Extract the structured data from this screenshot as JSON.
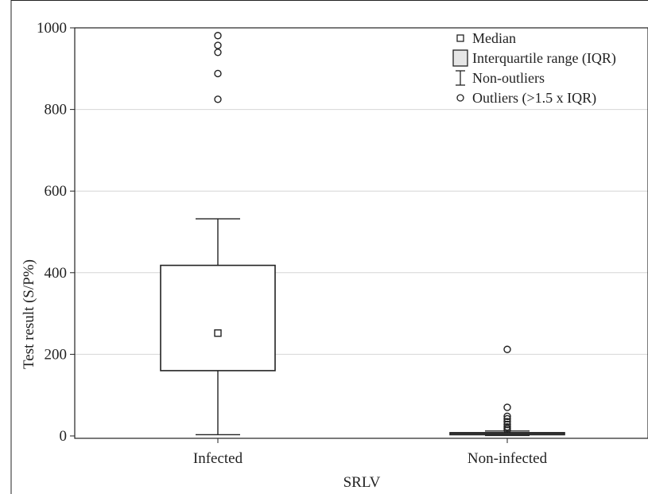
{
  "chart_data": {
    "type": "box",
    "title": "",
    "xlabel": "SRLV",
    "ylabel": "Test result (S/P%)",
    "ylim": [
      0,
      1000
    ],
    "yticks": [
      0,
      200,
      400,
      600,
      800,
      1000
    ],
    "grid": "horizontal",
    "legend_position": "top-right",
    "categories": [
      "Infected",
      "Non-infected"
    ],
    "boxes": [
      {
        "category": "Infected",
        "whisker_low": 3,
        "q1": 160,
        "median": 252,
        "q3": 418,
        "whisker_high": 532,
        "outliers": [
          825,
          888,
          940,
          957,
          981
        ]
      },
      {
        "category": "Non-infected",
        "whisker_low": 1,
        "q1": 3,
        "median": 6,
        "q3": 8,
        "whisker_high": 12,
        "outliers": [
          14,
          18,
          22,
          28,
          35,
          42,
          48,
          70,
          212
        ]
      }
    ],
    "legend": [
      {
        "marker": "median",
        "label": "Median"
      },
      {
        "marker": "iqr",
        "label": "Interquartile range (IQR)"
      },
      {
        "marker": "whisker",
        "label": "Non-outliers"
      },
      {
        "marker": "outlier",
        "label": "Outliers (>1.5 x IQR)"
      }
    ],
    "colors": {
      "box_stroke": "#222222",
      "grid": "#d6d6d6",
      "iqr_legend_fill": "#e6e6e6"
    }
  }
}
